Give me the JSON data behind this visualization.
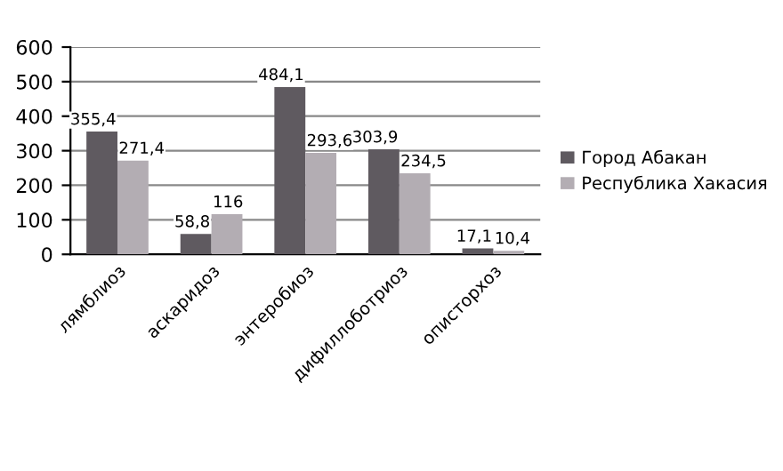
{
  "chart_data": {
    "type": "bar",
    "categories": [
      "лямблиоз",
      "аскаридоз",
      "энтеробиоз",
      "дифиллоботриоз",
      "описторхоз"
    ],
    "series": [
      {
        "name": "Город Абакан",
        "color": "#5f5a60",
        "values": [
          355.4,
          58.8,
          484.1,
          303.9,
          17.1
        ],
        "value_labels": [
          "355,4",
          "58,8",
          "484,1",
          "303,9",
          "17,1"
        ]
      },
      {
        "name": "Республика Хакасия",
        "color": "#b3adb3",
        "values": [
          271.4,
          116,
          293.6,
          234.5,
          10.4
        ],
        "value_labels": [
          "271,4",
          "116",
          "293,6",
          "234,5",
          "10,4"
        ]
      }
    ],
    "ylim": [
      0,
      600
    ],
    "yticks": [
      0,
      100,
      200,
      300,
      400,
      500,
      600
    ],
    "grid": "y",
    "legend": "right"
  }
}
